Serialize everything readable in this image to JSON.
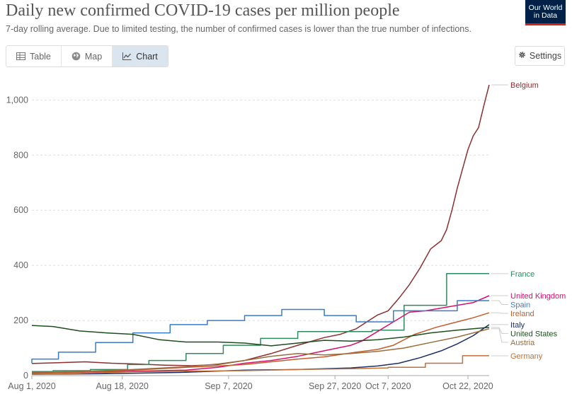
{
  "header": {
    "title": "Daily new confirmed COVID-19 cases per million people",
    "subtitle": "7-day rolling average. Due to limited testing, the number of confirmed cases is lower than the true number of infections.",
    "logo_line1": "Our World",
    "logo_line2": "in Data"
  },
  "tabs": [
    {
      "label": "Table",
      "icon": "table-icon",
      "active": false
    },
    {
      "label": "Map",
      "icon": "globe-icon",
      "active": false
    },
    {
      "label": "Chart",
      "icon": "line-chart-icon",
      "active": true
    }
  ],
  "settings_label": "Settings",
  "chart_data": {
    "type": "line",
    "title": "Daily new confirmed COVID-19 cases per million people",
    "xlabel": "",
    "ylabel": "",
    "ylim": [
      0,
      1060
    ],
    "yticks": [
      0,
      200,
      400,
      600,
      800,
      1000
    ],
    "ytick_labels": [
      "0",
      "200",
      "400",
      "600",
      "800",
      "1,000"
    ],
    "xticks": [
      {
        "date": "2020-08-01",
        "label": "Aug 1, 2020"
      },
      {
        "date": "2020-08-18",
        "label": "Aug 18, 2020"
      },
      {
        "date": "2020-09-07",
        "label": "Sep 7, 2020"
      },
      {
        "date": "2020-09-27",
        "label": "Sep 27, 2020"
      },
      {
        "date": "2020-10-07",
        "label": "Oct 7, 2020"
      },
      {
        "date": "2020-10-22",
        "label": "Oct 22, 2020"
      }
    ],
    "x_range": [
      "2020-08-01",
      "2020-10-26"
    ],
    "grid": "horizontal-dashed",
    "legend": "right-end-labels",
    "series": [
      {
        "name": "Belgium",
        "color": "#8b2f2f",
        "points": [
          [
            "2020-08-01",
            44
          ],
          [
            "2020-08-06",
            47
          ],
          [
            "2020-08-11",
            50
          ],
          [
            "2020-08-16",
            45
          ],
          [
            "2020-08-21",
            42
          ],
          [
            "2020-08-26",
            38
          ],
          [
            "2020-08-31",
            36
          ],
          [
            "2020-09-05",
            40
          ],
          [
            "2020-09-10",
            55
          ],
          [
            "2020-09-15",
            80
          ],
          [
            "2020-09-20",
            110
          ],
          [
            "2020-09-25",
            138
          ],
          [
            "2020-09-28",
            150
          ],
          [
            "2020-10-01",
            170
          ],
          [
            "2020-10-03",
            195
          ],
          [
            "2020-10-05",
            220
          ],
          [
            "2020-10-07",
            235
          ],
          [
            "2020-10-09",
            280
          ],
          [
            "2020-10-11",
            330
          ],
          [
            "2020-10-13",
            390
          ],
          [
            "2020-10-15",
            460
          ],
          [
            "2020-10-17",
            490
          ],
          [
            "2020-10-18",
            530
          ],
          [
            "2020-10-19",
            600
          ],
          [
            "2020-10-20",
            680
          ],
          [
            "2020-10-21",
            750
          ],
          [
            "2020-10-22",
            820
          ],
          [
            "2020-10-23",
            870
          ],
          [
            "2020-10-24",
            900
          ],
          [
            "2020-10-25",
            980
          ],
          [
            "2020-10-26",
            1055
          ]
        ]
      },
      {
        "name": "France",
        "color": "#2f8a5e",
        "points": [
          [
            "2020-08-01",
            15
          ],
          [
            "2020-08-05",
            15
          ],
          [
            "2020-08-05",
            18
          ],
          [
            "2020-08-12",
            18
          ],
          [
            "2020-08-12",
            22
          ],
          [
            "2020-08-19",
            22
          ],
          [
            "2020-08-19",
            40
          ],
          [
            "2020-08-23",
            40
          ],
          [
            "2020-08-23",
            55
          ],
          [
            "2020-08-30",
            55
          ],
          [
            "2020-08-30",
            80
          ],
          [
            "2020-09-06",
            80
          ],
          [
            "2020-09-06",
            110
          ],
          [
            "2020-09-13",
            110
          ],
          [
            "2020-09-13",
            135
          ],
          [
            "2020-09-20",
            135
          ],
          [
            "2020-09-20",
            160
          ],
          [
            "2020-10-04",
            160
          ],
          [
            "2020-10-04",
            165
          ],
          [
            "2020-10-10",
            165
          ],
          [
            "2020-10-10",
            255
          ],
          [
            "2020-10-18",
            255
          ],
          [
            "2020-10-18",
            370
          ],
          [
            "2020-10-26",
            370
          ]
        ]
      },
      {
        "name": "United Kingdom",
        "color": "#d2126c",
        "points": [
          [
            "2020-08-01",
            10
          ],
          [
            "2020-08-10",
            12
          ],
          [
            "2020-08-20",
            16
          ],
          [
            "2020-08-30",
            20
          ],
          [
            "2020-09-05",
            30
          ],
          [
            "2020-09-10",
            45
          ],
          [
            "2020-09-15",
            55
          ],
          [
            "2020-09-20",
            70
          ],
          [
            "2020-09-25",
            90
          ],
          [
            "2020-09-30",
            110
          ],
          [
            "2020-10-02",
            125
          ],
          [
            "2020-10-05",
            160
          ],
          [
            "2020-10-08",
            195
          ],
          [
            "2020-10-11",
            230
          ],
          [
            "2020-10-14",
            235
          ],
          [
            "2020-10-17",
            245
          ],
          [
            "2020-10-20",
            255
          ],
          [
            "2020-10-23",
            265
          ],
          [
            "2020-10-26",
            290
          ]
        ]
      },
      {
        "name": "Spain",
        "color": "#3a7bc8",
        "points": [
          [
            "2020-08-01",
            45
          ],
          [
            "2020-08-01",
            60
          ],
          [
            "2020-08-06",
            60
          ],
          [
            "2020-08-06",
            85
          ],
          [
            "2020-08-13",
            85
          ],
          [
            "2020-08-13",
            120
          ],
          [
            "2020-08-20",
            120
          ],
          [
            "2020-08-20",
            155
          ],
          [
            "2020-08-27",
            155
          ],
          [
            "2020-08-27",
            185
          ],
          [
            "2020-09-03",
            185
          ],
          [
            "2020-09-03",
            200
          ],
          [
            "2020-09-10",
            200
          ],
          [
            "2020-09-10",
            218
          ],
          [
            "2020-09-17",
            218
          ],
          [
            "2020-09-17",
            240
          ],
          [
            "2020-09-25",
            240
          ],
          [
            "2020-09-25",
            218
          ],
          [
            "2020-10-01",
            218
          ],
          [
            "2020-10-01",
            195
          ],
          [
            "2020-10-08",
            195
          ],
          [
            "2020-10-08",
            235
          ],
          [
            "2020-10-20",
            235
          ],
          [
            "2020-10-20",
            272
          ],
          [
            "2020-10-26",
            272
          ]
        ]
      },
      {
        "name": "Ireland",
        "color": "#c15d2e",
        "points": [
          [
            "2020-08-01",
            8
          ],
          [
            "2020-08-10",
            12
          ],
          [
            "2020-08-20",
            20
          ],
          [
            "2020-08-30",
            30
          ],
          [
            "2020-09-05",
            35
          ],
          [
            "2020-09-10",
            40
          ],
          [
            "2020-09-15",
            50
          ],
          [
            "2020-09-20",
            60
          ],
          [
            "2020-09-25",
            68
          ],
          [
            "2020-10-01",
            85
          ],
          [
            "2020-10-05",
            95
          ],
          [
            "2020-10-08",
            110
          ],
          [
            "2020-10-12",
            150
          ],
          [
            "2020-10-16",
            175
          ],
          [
            "2020-10-20",
            195
          ],
          [
            "2020-10-23",
            210
          ],
          [
            "2020-10-26",
            228
          ]
        ]
      },
      {
        "name": "Italy",
        "color": "#1a2f66",
        "points": [
          [
            "2020-08-01",
            5
          ],
          [
            "2020-08-15",
            7
          ],
          [
            "2020-08-30",
            12
          ],
          [
            "2020-09-10",
            20
          ],
          [
            "2020-09-20",
            22
          ],
          [
            "2020-09-30",
            28
          ],
          [
            "2020-10-05",
            35
          ],
          [
            "2020-10-09",
            45
          ],
          [
            "2020-10-13",
            65
          ],
          [
            "2020-10-17",
            90
          ],
          [
            "2020-10-20",
            115
          ],
          [
            "2020-10-23",
            145
          ],
          [
            "2020-10-26",
            185
          ]
        ]
      },
      {
        "name": "Austria",
        "color": "#9b6b3c",
        "points": [
          [
            "2020-08-01",
            12
          ],
          [
            "2020-08-10",
            15
          ],
          [
            "2020-08-20",
            22
          ],
          [
            "2020-08-30",
            32
          ],
          [
            "2020-09-05",
            42
          ],
          [
            "2020-09-10",
            55
          ],
          [
            "2020-09-15",
            70
          ],
          [
            "2020-09-20",
            80
          ],
          [
            "2020-09-25",
            75
          ],
          [
            "2020-09-30",
            80
          ],
          [
            "2020-10-05",
            88
          ],
          [
            "2020-10-10",
            100
          ],
          [
            "2020-10-15",
            120
          ],
          [
            "2020-10-20",
            140
          ],
          [
            "2020-10-26",
            170
          ]
        ]
      },
      {
        "name": "United States",
        "color": "#1e4d1e",
        "points": [
          [
            "2020-08-01",
            182
          ],
          [
            "2020-08-05",
            178
          ],
          [
            "2020-08-10",
            162
          ],
          [
            "2020-08-15",
            155
          ],
          [
            "2020-08-20",
            150
          ],
          [
            "2020-08-25",
            130
          ],
          [
            "2020-08-30",
            122
          ],
          [
            "2020-09-05",
            122
          ],
          [
            "2020-09-10",
            118
          ],
          [
            "2020-09-15",
            108
          ],
          [
            "2020-09-20",
            118
          ],
          [
            "2020-09-25",
            128
          ],
          [
            "2020-09-30",
            125
          ],
          [
            "2020-10-05",
            130
          ],
          [
            "2020-10-10",
            140
          ],
          [
            "2020-10-15",
            155
          ],
          [
            "2020-10-20",
            165
          ],
          [
            "2020-10-26",
            175
          ]
        ]
      },
      {
        "name": "Germany",
        "color": "#c0713a",
        "points": [
          [
            "2020-08-01",
            5
          ],
          [
            "2020-08-10",
            8
          ],
          [
            "2020-08-20",
            14
          ],
          [
            "2020-08-30",
            16
          ],
          [
            "2020-09-10",
            18
          ],
          [
            "2020-09-20",
            22
          ],
          [
            "2020-09-30",
            25
          ],
          [
            "2020-10-07",
            28
          ],
          [
            "2020-10-07",
            30
          ],
          [
            "2020-10-14",
            30
          ],
          [
            "2020-10-14",
            45
          ],
          [
            "2020-10-21",
            45
          ],
          [
            "2020-10-21",
            72
          ],
          [
            "2020-10-26",
            72
          ]
        ]
      }
    ]
  }
}
